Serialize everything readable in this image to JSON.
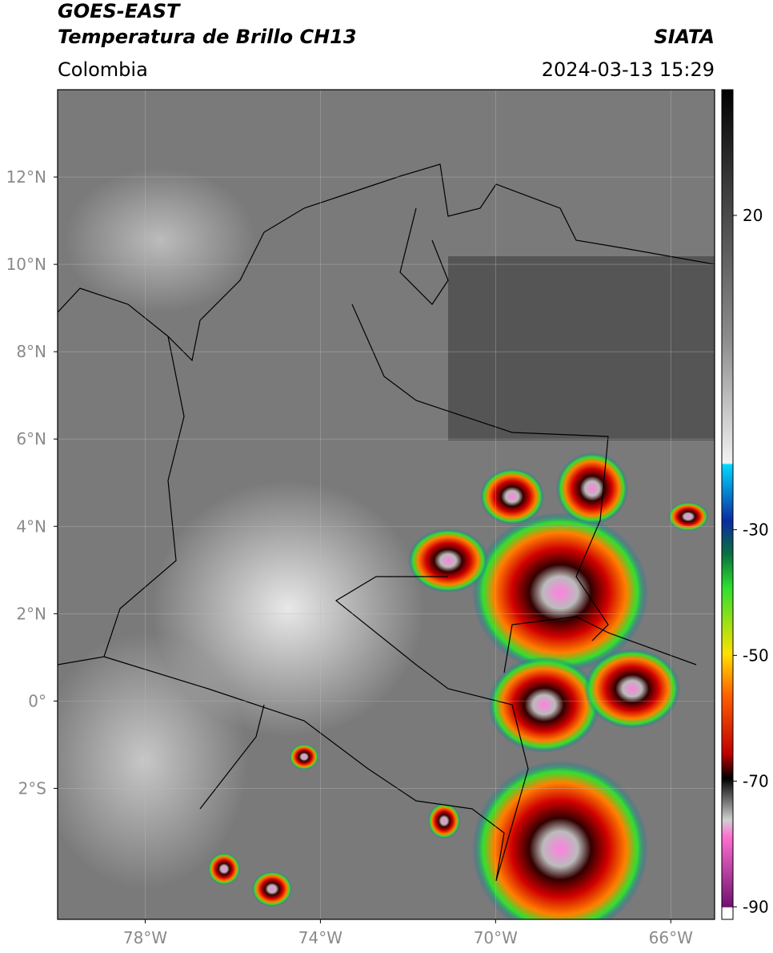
{
  "header": {
    "title": "GOES-EAST",
    "subtitle": "Temperatura de Brillo CH13",
    "credit": "SIATA",
    "region": "Colombia",
    "timestamp": "2024-03-13 15:29"
  },
  "map": {
    "xlim": [
      -80,
      -65
    ],
    "ylim": [
      -5,
      14
    ],
    "xticks": [
      {
        "value": -78,
        "label": "78°W"
      },
      {
        "value": -74,
        "label": "74°W"
      },
      {
        "value": -70,
        "label": "70°W"
      },
      {
        "value": -66,
        "label": "66°W"
      }
    ],
    "yticks": [
      {
        "value": 12,
        "label": "12°N"
      },
      {
        "value": 10,
        "label": "10°N"
      },
      {
        "value": 8,
        "label": "8°N"
      },
      {
        "value": 6,
        "label": "6°N"
      },
      {
        "value": 4,
        "label": "4°N"
      },
      {
        "value": 2,
        "label": "2°N"
      },
      {
        "value": 0,
        "label": "0°"
      },
      {
        "value": -2,
        "label": "2°S"
      }
    ]
  },
  "colorbar": {
    "lim": [
      -92,
      40
    ],
    "ticks": [
      20,
      -30,
      -50,
      -70,
      -90
    ]
  }
}
